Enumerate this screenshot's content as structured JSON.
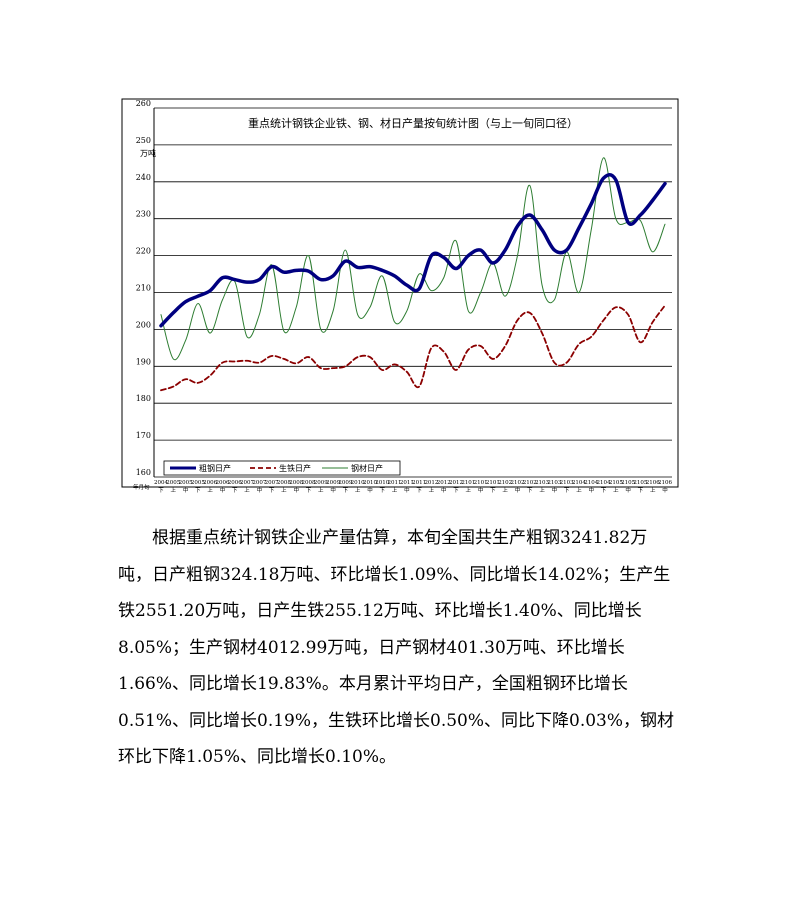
{
  "chart_data": {
    "type": "line",
    "title": "重点统计钢铁企业铁、钢、材日产量按旬统计图（与上一旬同口径）",
    "ylabel": "万吨",
    "xlabel": "年月旬",
    "ylim": [
      160,
      260
    ],
    "yticks": [
      160,
      170,
      180,
      190,
      200,
      210,
      220,
      230,
      240,
      250,
      260
    ],
    "grid": true,
    "legend_position": "bottom-left",
    "categories": [
      [
        "2004",
        "下"
      ],
      [
        "2005",
        "上"
      ],
      [
        "2005",
        "中"
      ],
      [
        "2005",
        "下"
      ],
      [
        "2006",
        "上"
      ],
      [
        "2006",
        "中"
      ],
      [
        "2006",
        "下"
      ],
      [
        "2007",
        "上"
      ],
      [
        "2007",
        "中"
      ],
      [
        "2007",
        "下"
      ],
      [
        "2008",
        "上"
      ],
      [
        "2008",
        "中"
      ],
      [
        "2008",
        "下"
      ],
      [
        "2009",
        "上"
      ],
      [
        "2009",
        "中"
      ],
      [
        "2009",
        "下"
      ],
      [
        "2010",
        "上"
      ],
      [
        "2010",
        "中"
      ],
      [
        "2010",
        "下"
      ],
      [
        "2011",
        "上"
      ],
      [
        "2011",
        "中"
      ],
      [
        "2011",
        "下"
      ],
      [
        "2012",
        "上"
      ],
      [
        "2012",
        "中"
      ],
      [
        "2012",
        "下"
      ],
      [
        "2101",
        "上"
      ],
      [
        "2101",
        "中"
      ],
      [
        "2101",
        "下"
      ],
      [
        "2102",
        "上"
      ],
      [
        "2102",
        "中"
      ],
      [
        "2102",
        "下"
      ],
      [
        "2103",
        "上"
      ],
      [
        "2103",
        "中"
      ],
      [
        "2103",
        "下"
      ],
      [
        "2104",
        "上"
      ],
      [
        "2104",
        "中"
      ],
      [
        "2104",
        "下"
      ],
      [
        "2105",
        "上"
      ],
      [
        "2105",
        "中"
      ],
      [
        "2105",
        "下"
      ],
      [
        "2106",
        "上"
      ],
      [
        "2106",
        "中"
      ]
    ],
    "series": [
      {
        "name": "粗钢日产",
        "color": "#000080",
        "style": "solid-thick",
        "values": [
          201,
          204.5,
          207.5,
          209,
          210.5,
          214,
          213.5,
          212.8,
          213.5,
          217,
          215.5,
          216,
          215.8,
          213.5,
          214.5,
          218.5,
          216.8,
          217,
          216,
          214.5,
          212,
          211,
          220,
          219.5,
          216.5,
          220,
          221.5,
          218,
          221.5,
          228,
          231,
          227,
          221.5,
          221.5,
          227.5,
          234,
          241,
          240.5,
          229,
          231,
          235,
          239.5
        ]
      },
      {
        "name": "生铁日产",
        "color": "#8B0000",
        "style": "dashed",
        "values": [
          183.5,
          184.5,
          186.5,
          185.5,
          187.5,
          191,
          191.3,
          191.5,
          191,
          192.8,
          192,
          190.8,
          192.5,
          189.5,
          189.5,
          190,
          192.5,
          192.5,
          189,
          190.5,
          188.5,
          184.5,
          195,
          194,
          189,
          194.5,
          195.5,
          192,
          195.5,
          202.5,
          204.5,
          199,
          191,
          191,
          196,
          198,
          202.5,
          206,
          204,
          196.5,
          202,
          206.5
        ]
      },
      {
        "name": "钢材日产",
        "color": "#2E7D32",
        "style": "thin",
        "values": [
          204,
          192,
          197,
          207,
          199,
          208,
          213,
          198,
          204,
          217.5,
          199.5,
          206,
          220,
          200,
          205,
          221.5,
          204,
          206,
          214.5,
          202,
          205,
          215,
          210.5,
          214,
          224,
          205,
          210,
          218,
          209,
          220,
          239,
          212,
          208,
          221,
          210,
          227,
          246.5,
          230,
          229,
          229.5,
          221,
          228.5
        ]
      }
    ]
  },
  "paragraph": "根据重点统计钢铁企业产量估算，本旬全国共生产粗钢3241.82万吨，日产粗钢324.18万吨、环比增长1.09%、同比增长14.02%；生产生铁2551.20万吨，日产生铁255.12万吨、环比增长1.40%、同比增长8.05%；生产钢材4012.99万吨，日产钢材401.30万吨、环比增长1.66%、同比增长19.83%。本月累计平均日产，全国粗钢环比增长0.51%、同比增长0.19%，生铁环比增长0.50%、同比下降0.03%，钢材环比下降1.05%、同比增长0.10%。"
}
